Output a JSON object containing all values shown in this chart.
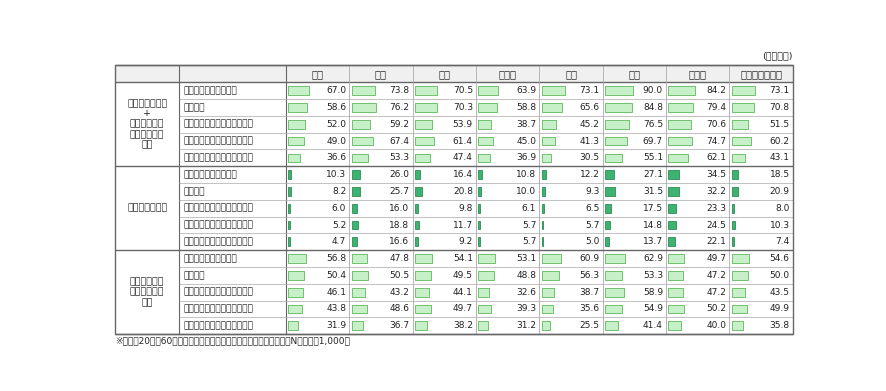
{
  "unit_label": "(単位：％)",
  "columns": [
    "日本",
    "米国",
    "英国",
    "ドイツ",
    "韓国",
    "中国",
    "インド",
    "オーストラリア"
  ],
  "row_groups": [
    {
      "group_label": "提供してもよい\n+\n条件によって\nは提供しても\nよい",
      "rows": [
        {
          "name": "公益事業を行う大企業",
          "vals": [
            67.0,
            73.8,
            70.5,
            63.9,
            73.1,
            90.0,
            84.2,
            73.1
          ]
        },
        {
          "name": "金融機関",
          "vals": [
            58.6,
            76.2,
            70.3,
            58.8,
            65.6,
            84.8,
            79.4,
            70.8
          ]
        },
        {
          "name": "一般大企業（上場企業など）",
          "vals": [
            52.0,
            59.2,
            53.9,
            38.7,
            45.2,
            76.5,
            70.6,
            51.5
          ]
        },
        {
          "name": "上記以外の一般企業（既知）",
          "vals": [
            49.0,
            67.4,
            61.4,
            45.0,
            41.3,
            69.7,
            74.7,
            60.2
          ]
        },
        {
          "name": "上記以外の一般企業（未知）",
          "vals": [
            36.6,
            53.3,
            47.4,
            36.9,
            30.5,
            55.1,
            62.1,
            43.1
          ]
        }
      ],
      "bar_style": "light"
    },
    {
      "group_label": "提供してもよい",
      "rows": [
        {
          "name": "公益事業を行う大企業",
          "vals": [
            10.3,
            26.0,
            16.4,
            10.8,
            12.2,
            27.1,
            34.5,
            18.5
          ]
        },
        {
          "name": "金融機関",
          "vals": [
            8.2,
            25.7,
            20.8,
            10.0,
            9.3,
            31.5,
            32.2,
            20.9
          ]
        },
        {
          "name": "一般大企業（上場企業など）",
          "vals": [
            6.0,
            16.0,
            9.8,
            6.1,
            6.5,
            17.5,
            23.3,
            8.0
          ]
        },
        {
          "name": "上記以外の一般企業（既知）",
          "vals": [
            5.2,
            18.8,
            11.7,
            5.7,
            5.7,
            14.8,
            24.5,
            10.3
          ]
        },
        {
          "name": "上記以外の一般企業（未知）",
          "vals": [
            4.7,
            16.6,
            9.2,
            5.7,
            5.0,
            13.7,
            22.1,
            7.4
          ]
        }
      ],
      "bar_style": "dark"
    },
    {
      "group_label": "条件によって\nは提供しても\nよい",
      "rows": [
        {
          "name": "公益事業を行う大企業",
          "vals": [
            56.8,
            47.8,
            54.1,
            53.1,
            60.9,
            62.9,
            49.7,
            54.6
          ]
        },
        {
          "name": "金融機関",
          "vals": [
            50.4,
            50.5,
            49.5,
            48.8,
            56.3,
            53.3,
            47.2,
            50.0
          ]
        },
        {
          "name": "一般大企業（上場企業など）",
          "vals": [
            46.1,
            43.2,
            44.1,
            32.6,
            38.7,
            58.9,
            47.2,
            43.5
          ]
        },
        {
          "name": "上記以外の一般企業（既知）",
          "vals": [
            43.8,
            48.6,
            49.7,
            39.3,
            35.6,
            54.9,
            50.2,
            49.9
          ]
        },
        {
          "name": "上記以外の一般企業（未知）",
          "vals": [
            31.9,
            36.7,
            38.2,
            31.2,
            25.5,
            41.4,
            40.0,
            35.8
          ]
        }
      ],
      "bar_style": "light"
    }
  ],
  "footnote": "※各国、20代～60代の回答を各年代の人口に応じ加重平均した値。N値は各国1,000。",
  "bar_max": 100,
  "light_bar_fill": "#c8f0c8",
  "light_bar_edge": "#5cb85c",
  "dark_bar_fill": "#3cb371",
  "dark_bar_edge": "#2e8b57",
  "line_color_thick": "#666666",
  "line_color_thin": "#aaaaaa",
  "text_color": "#222222",
  "header_bg": "#f5f5f5"
}
